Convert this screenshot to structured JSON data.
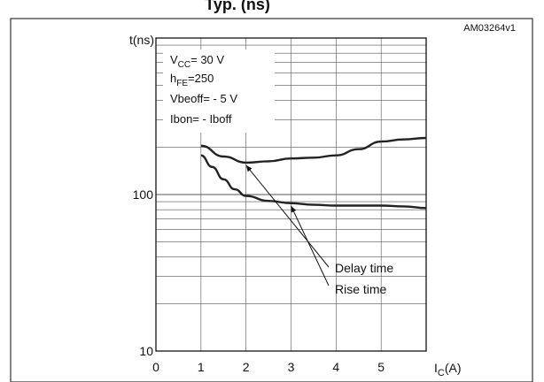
{
  "header": {
    "title": "Ty​p. (ns)",
    "figure_id": "AM03264v1"
  },
  "conditions": [
    {
      "main": "V",
      "sub": "CC",
      "rest": "= 30 V"
    },
    {
      "main": "h",
      "sub": "FE",
      "rest": "=250"
    },
    {
      "main": "Vbeoff= - 5 V",
      "sub": "",
      "rest": ""
    },
    {
      "main": "Ibon= - Iboff",
      "sub": "",
      "rest": ""
    }
  ],
  "chart_data": {
    "type": "line",
    "y_scale": "log",
    "ylabel": "t(ns)",
    "xlabel_main": "I",
    "xlabel_sub": "C",
    "xlabel_unit": "(A)",
    "xlim": [
      0,
      6
    ],
    "ylim": [
      10,
      1000
    ],
    "x_ticks": [
      0,
      1,
      2,
      3,
      4,
      5
    ],
    "y_tick_labels": [
      {
        "value": 10,
        "label": "10"
      },
      {
        "value": 100,
        "label": "100"
      }
    ],
    "grid": true,
    "series": [
      {
        "name": "Delay time",
        "x": [
          1.0,
          1.5,
          2.0,
          2.5,
          3.0,
          3.5,
          4.0,
          4.5,
          5.0,
          5.5,
          6.0
        ],
        "y": [
          205,
          175,
          160,
          163,
          170,
          172,
          178,
          195,
          218,
          225,
          230
        ]
      },
      {
        "name": "Rise time",
        "x": [
          1.0,
          1.25,
          1.5,
          1.75,
          2.0,
          2.5,
          3.0,
          3.5,
          4.0,
          4.5,
          5.0,
          5.5,
          6.0
        ],
        "y": [
          178,
          150,
          125,
          108,
          98,
          91,
          88,
          86,
          85,
          85,
          85,
          84,
          82
        ]
      }
    ],
    "annotations": [
      {
        "label": "Delay time",
        "target_x": 2.0,
        "target_y": 160
      },
      {
        "label": "Rise time",
        "target_x": 3.0,
        "target_y": 88
      }
    ]
  }
}
